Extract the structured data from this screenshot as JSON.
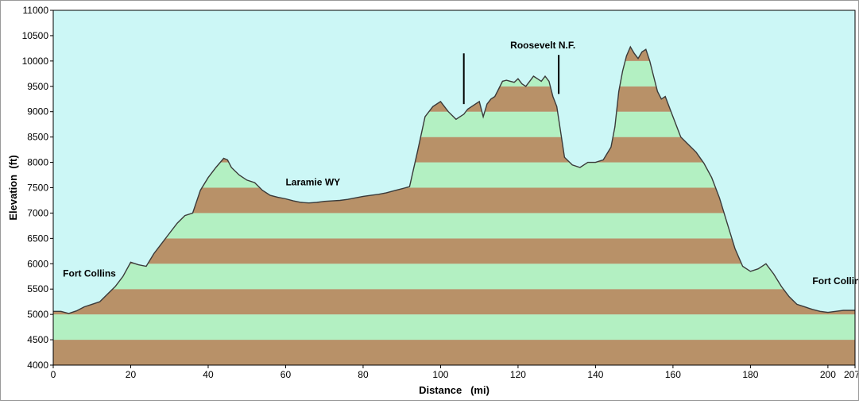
{
  "chart_data": {
    "type": "area",
    "xlabel": "Distance   (mi)",
    "ylabel": "Elevation  (ft)",
    "xlim": [
      0,
      207
    ],
    "ylim": [
      4000,
      11000
    ],
    "x_ticks": [
      0,
      20,
      40,
      60,
      80,
      100,
      120,
      140,
      160,
      180,
      200,
      207
    ],
    "y_ticks": [
      4000,
      4500,
      5000,
      5500,
      6000,
      6500,
      7000,
      7500,
      8000,
      8500,
      9000,
      9500,
      10000,
      10500,
      11000
    ],
    "band_interval": 500,
    "band_colors": [
      "#b89168",
      "#b3f0c2"
    ],
    "plot_background": "#ccf7f6",
    "outline_color": "#3a3a3a",
    "series": [
      {
        "x": [
          0,
          2,
          4,
          6,
          8,
          10,
          12,
          14,
          16,
          18,
          20,
          22,
          24,
          26,
          28,
          30,
          32,
          34,
          36,
          38,
          40,
          42,
          44,
          45,
          46,
          48,
          50,
          52,
          54,
          56,
          58,
          60,
          62,
          64,
          66,
          68,
          70,
          72,
          74,
          76,
          78,
          80,
          82,
          84,
          86,
          88,
          90,
          92,
          94,
          96,
          98,
          100,
          102,
          104,
          105,
          106,
          107,
          108,
          109,
          110,
          111,
          112,
          113,
          114,
          115,
          116,
          117,
          118,
          119,
          120,
          121,
          122,
          123,
          124,
          125,
          126,
          127,
          128,
          129,
          130,
          132,
          134,
          136,
          138,
          140,
          142,
          144,
          145,
          146,
          147,
          148,
          149,
          150,
          151,
          152,
          153,
          154,
          155,
          156,
          157,
          158,
          160,
          162,
          164,
          166,
          168,
          170,
          172,
          174,
          176,
          178,
          180,
          182,
          184,
          186,
          188,
          190,
          192,
          194,
          196,
          198,
          200,
          202,
          204,
          207
        ],
        "y": [
          5060,
          5060,
          5020,
          5070,
          5150,
          5200,
          5250,
          5400,
          5550,
          5750,
          6030,
          5980,
          5950,
          6200,
          6400,
          6600,
          6800,
          6950,
          7000,
          7450,
          7700,
          7900,
          8080,
          8050,
          7900,
          7750,
          7650,
          7600,
          7450,
          7350,
          7310,
          7280,
          7240,
          7210,
          7200,
          7210,
          7230,
          7240,
          7250,
          7270,
          7300,
          7330,
          7350,
          7370,
          7400,
          7440,
          7480,
          7520,
          8200,
          8900,
          9100,
          9200,
          9000,
          8850,
          8900,
          8950,
          9050,
          9100,
          9150,
          9200,
          8900,
          9150,
          9250,
          9300,
          9450,
          9600,
          9620,
          9600,
          9580,
          9650,
          9550,
          9500,
          9600,
          9700,
          9650,
          9600,
          9700,
          9600,
          9300,
          9100,
          8100,
          7950,
          7900,
          8000,
          8000,
          8050,
          8300,
          8700,
          9400,
          9800,
          10100,
          10280,
          10150,
          10050,
          10180,
          10230,
          10000,
          9700,
          9400,
          9250,
          9300,
          8900,
          8500,
          8350,
          8200,
          7980,
          7700,
          7300,
          6800,
          6300,
          5950,
          5850,
          5900,
          6000,
          5800,
          5550,
          5350,
          5200,
          5150,
          5100,
          5060,
          5040,
          5060,
          5080,
          5080
        ]
      }
    ],
    "annotations": [
      {
        "text": "Fort Collins",
        "x": 2.5,
        "y": 5750
      },
      {
        "text": "Laramie WY",
        "x": 60,
        "y": 7550
      },
      {
        "text": "Roosevelt N.F.",
        "x": 118,
        "y": 10250
      },
      {
        "text": "Fort Collins",
        "x": 196,
        "y": 5600
      }
    ],
    "markers": [
      {
        "x": 106,
        "y_from": 9150,
        "y_to": 10150
      },
      {
        "x": 130.5,
        "y_from": 9350,
        "y_to": 10120
      }
    ]
  }
}
